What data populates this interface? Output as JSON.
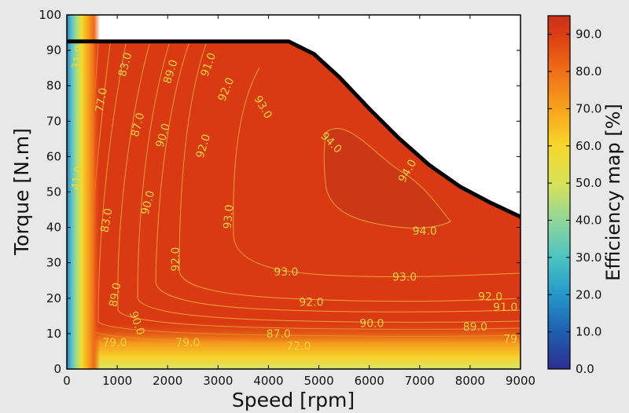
{
  "chart_data": {
    "type": "heatmap",
    "xlabel": "Speed [rpm]",
    "ylabel": "Torque [N.m]",
    "colorbar_label": "Efficiency map [%]",
    "xlim": [
      0,
      9000
    ],
    "ylim": [
      0,
      100
    ],
    "x_ticks": [
      "0",
      "1000",
      "2000",
      "3000",
      "4000",
      "5000",
      "6000",
      "7000",
      "8000",
      "9000"
    ],
    "y_ticks": [
      "0",
      "10",
      "20",
      "30",
      "40",
      "50",
      "60",
      "70",
      "80",
      "90",
      "100"
    ],
    "colorbar_ticks": [
      "0.0",
      "10.0",
      "20.0",
      "30.0",
      "40.0",
      "50.0",
      "60.0",
      "70.0",
      "80.0",
      "90.0"
    ],
    "colorbar_range": [
      0,
      95
    ],
    "grid": false,
    "fill_color": "#d93a12",
    "boundary_color": "#000000",
    "max_torque_curve": {
      "speed": [
        0,
        4400,
        4900,
        5400,
        6000,
        6600,
        7200,
        7800,
        8400,
        9000
      ],
      "torque": [
        92.5,
        92.5,
        89.0,
        82.5,
        73.5,
        65.0,
        57.5,
        51.5,
        47.0,
        43.0
      ]
    },
    "contour_labels": [
      {
        "text": "31.0",
        "speed": 210,
        "torque": 88,
        "angle": 80
      },
      {
        "text": "83.0",
        "speed": 1150,
        "torque": 86,
        "angle": 75
      },
      {
        "text": "89.0",
        "speed": 2050,
        "torque": 84,
        "angle": 73
      },
      {
        "text": "91.0",
        "speed": 2800,
        "torque": 86,
        "angle": 70
      },
      {
        "text": "92.0",
        "speed": 3150,
        "torque": 79,
        "angle": 68
      },
      {
        "text": "77.0",
        "speed": 680,
        "torque": 76,
        "angle": 80
      },
      {
        "text": "87.0",
        "speed": 1400,
        "torque": 69,
        "angle": 75
      },
      {
        "text": "93.0",
        "speed": 3900,
        "torque": 74,
        "angle": -60
      },
      {
        "text": "90.0",
        "speed": 1900,
        "torque": 66,
        "angle": 73
      },
      {
        "text": "92.0",
        "speed": 2700,
        "torque": 63,
        "angle": 73
      },
      {
        "text": "94.0",
        "speed": 5250,
        "torque": 64,
        "angle": -45
      },
      {
        "text": "41.0",
        "speed": 200,
        "torque": 54,
        "angle": 80
      },
      {
        "text": "94.0",
        "speed": 6750,
        "torque": 56,
        "angle": 60
      },
      {
        "text": "90.0",
        "speed": 1600,
        "torque": 47,
        "angle": 75
      },
      {
        "text": "93.0",
        "speed": 3200,
        "torque": 43,
        "angle": 85
      },
      {
        "text": "83.0",
        "speed": 780,
        "torque": 42,
        "angle": 80
      },
      {
        "text": "94.0",
        "speed": 7100,
        "torque": 39,
        "angle": 0
      },
      {
        "text": "92.0",
        "speed": 2150,
        "torque": 31,
        "angle": 90
      },
      {
        "text": "93.0",
        "speed": 4350,
        "torque": 27.5,
        "angle": 0
      },
      {
        "text": "93.0",
        "speed": 6700,
        "torque": 26,
        "angle": 0
      },
      {
        "text": "89.0",
        "speed": 950,
        "torque": 21,
        "angle": 80
      },
      {
        "text": "92.0",
        "speed": 4850,
        "torque": 19,
        "angle": 0
      },
      {
        "text": "92.0",
        "speed": 8400,
        "torque": 20.5,
        "angle": 0
      },
      {
        "text": "91.0",
        "speed": 8700,
        "torque": 17.5,
        "angle": 0
      },
      {
        "text": "90.0",
        "speed": 1400,
        "torque": 13,
        "angle": -70
      },
      {
        "text": "90.0",
        "speed": 6050,
        "torque": 13,
        "angle": 0
      },
      {
        "text": "89.0",
        "speed": 8100,
        "torque": 12,
        "angle": 0
      },
      {
        "text": "87.0",
        "speed": 4200,
        "torque": 10,
        "angle": 0
      },
      {
        "text": "79.0",
        "speed": 950,
        "torque": 7.5,
        "angle": 0
      },
      {
        "text": "79.0",
        "speed": 2400,
        "torque": 7.5,
        "angle": 0
      },
      {
        "text": "72.0",
        "speed": 4600,
        "torque": 6.5,
        "angle": 0
      },
      {
        "text": "79",
        "speed": 8800,
        "torque": 8.5,
        "angle": 0
      }
    ]
  }
}
